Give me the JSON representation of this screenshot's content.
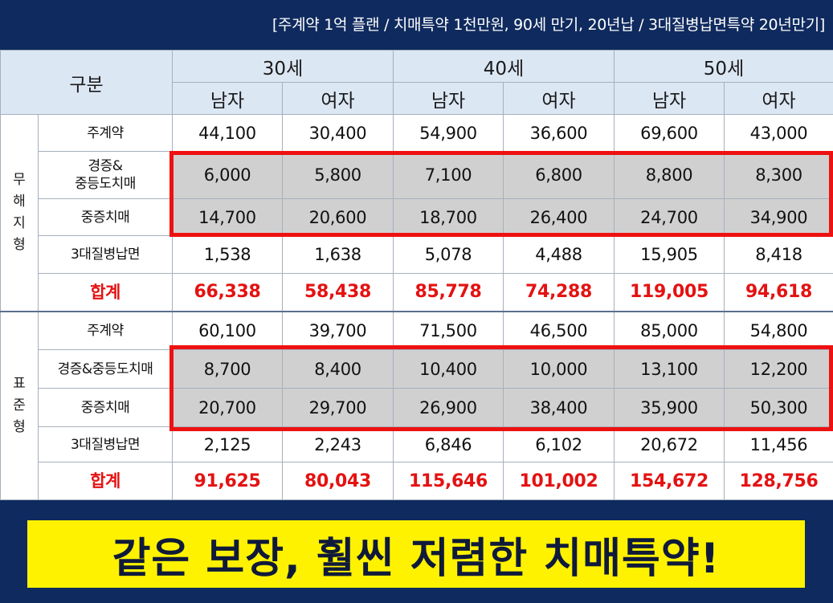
{
  "plan_caption": "[주계약 1억 플랜 / 치매특약 1천만원, 90세 만기, 20년납 / 3대질병납면특약 20년만기]",
  "header": {
    "category": "구분",
    "ages": [
      "30세",
      "40세",
      "50세"
    ],
    "genders": [
      "남자",
      "여자",
      "남자",
      "여자",
      "남자",
      "여자"
    ]
  },
  "groups": [
    {
      "name_lines": [
        "무",
        "해",
        "지",
        "형"
      ],
      "rows": [
        {
          "label": "주계약",
          "values": [
            "44,100",
            "30,400",
            "54,900",
            "36,600",
            "69,600",
            "43,000"
          ]
        },
        {
          "label_lines": [
            "경증&",
            "중등도치매"
          ],
          "values": [
            "6,000",
            "5,800",
            "7,100",
            "6,800",
            "8,800",
            "8,300"
          ]
        },
        {
          "label": "중증치매",
          "values": [
            "14,700",
            "20,600",
            "18,700",
            "26,400",
            "24,700",
            "34,900"
          ]
        },
        {
          "label": "3대질병납면",
          "values": [
            "1,538",
            "1,638",
            "5,078",
            "4,488",
            "15,905",
            "8,418"
          ]
        },
        {
          "label": "합계",
          "values": [
            "66,338",
            "58,438",
            "85,778",
            "74,288",
            "119,005",
            "94,618"
          ]
        }
      ]
    },
    {
      "name_lines": [
        "표",
        "준",
        "형"
      ],
      "rows": [
        {
          "label": "주계약",
          "values": [
            "60,100",
            "39,700",
            "71,500",
            "46,500",
            "85,000",
            "54,800"
          ]
        },
        {
          "label": "경증&중등도치매",
          "values": [
            "8,700",
            "8,400",
            "10,400",
            "10,000",
            "13,100",
            "12,200"
          ]
        },
        {
          "label": "중증치매",
          "values": [
            "20,700",
            "29,700",
            "26,900",
            "38,400",
            "35,900",
            "50,300"
          ]
        },
        {
          "label": "3대질병납면",
          "values": [
            "2,125",
            "2,243",
            "6,846",
            "6,102",
            "20,672",
            "11,456"
          ]
        },
        {
          "label": "합계",
          "values": [
            "91,625",
            "80,043",
            "115,646",
            "101,002",
            "154,672",
            "128,756"
          ]
        }
      ]
    }
  ],
  "slogan": "같은 보장, 훨씬 저렴한 치매특약!",
  "colors": {
    "navy": "#0f2a5e",
    "header_bg": "#dce7f4",
    "shade": "#d0d0d0",
    "highlight_red": "#ee1111",
    "total_red": "#e41212",
    "slogan_bg": "#fff200"
  }
}
